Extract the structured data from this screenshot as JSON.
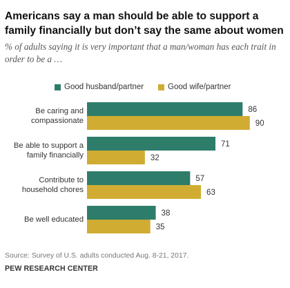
{
  "title": "Americans say a man should be able to support a family financially but don’t say the same about women",
  "subtitle": "% of adults saying it is very important that a man/woman has each trait in order to be a …",
  "source": "Source: Survey of U.S. adults conducted Aug. 8-21, 2017.",
  "brand": "PEW RESEARCH CENTER",
  "colors": {
    "husband": "#2e7d6b",
    "wife": "#d1ac33"
  },
  "chart_data": {
    "type": "bar",
    "orientation": "horizontal",
    "categories": [
      [
        "Be caring and",
        "compassionate"
      ],
      [
        "Be able to support a",
        "family financially"
      ],
      [
        "Contribute to",
        "household chores"
      ],
      [
        "Be well educated"
      ]
    ],
    "series": [
      {
        "name": "Good husband/partner",
        "values": [
          86,
          71,
          57,
          38
        ]
      },
      {
        "name": "Good wife/partner",
        "values": [
          90,
          32,
          63,
          35
        ]
      }
    ],
    "xlim": [
      0,
      100
    ],
    "grid": false,
    "legend_position": "top"
  }
}
